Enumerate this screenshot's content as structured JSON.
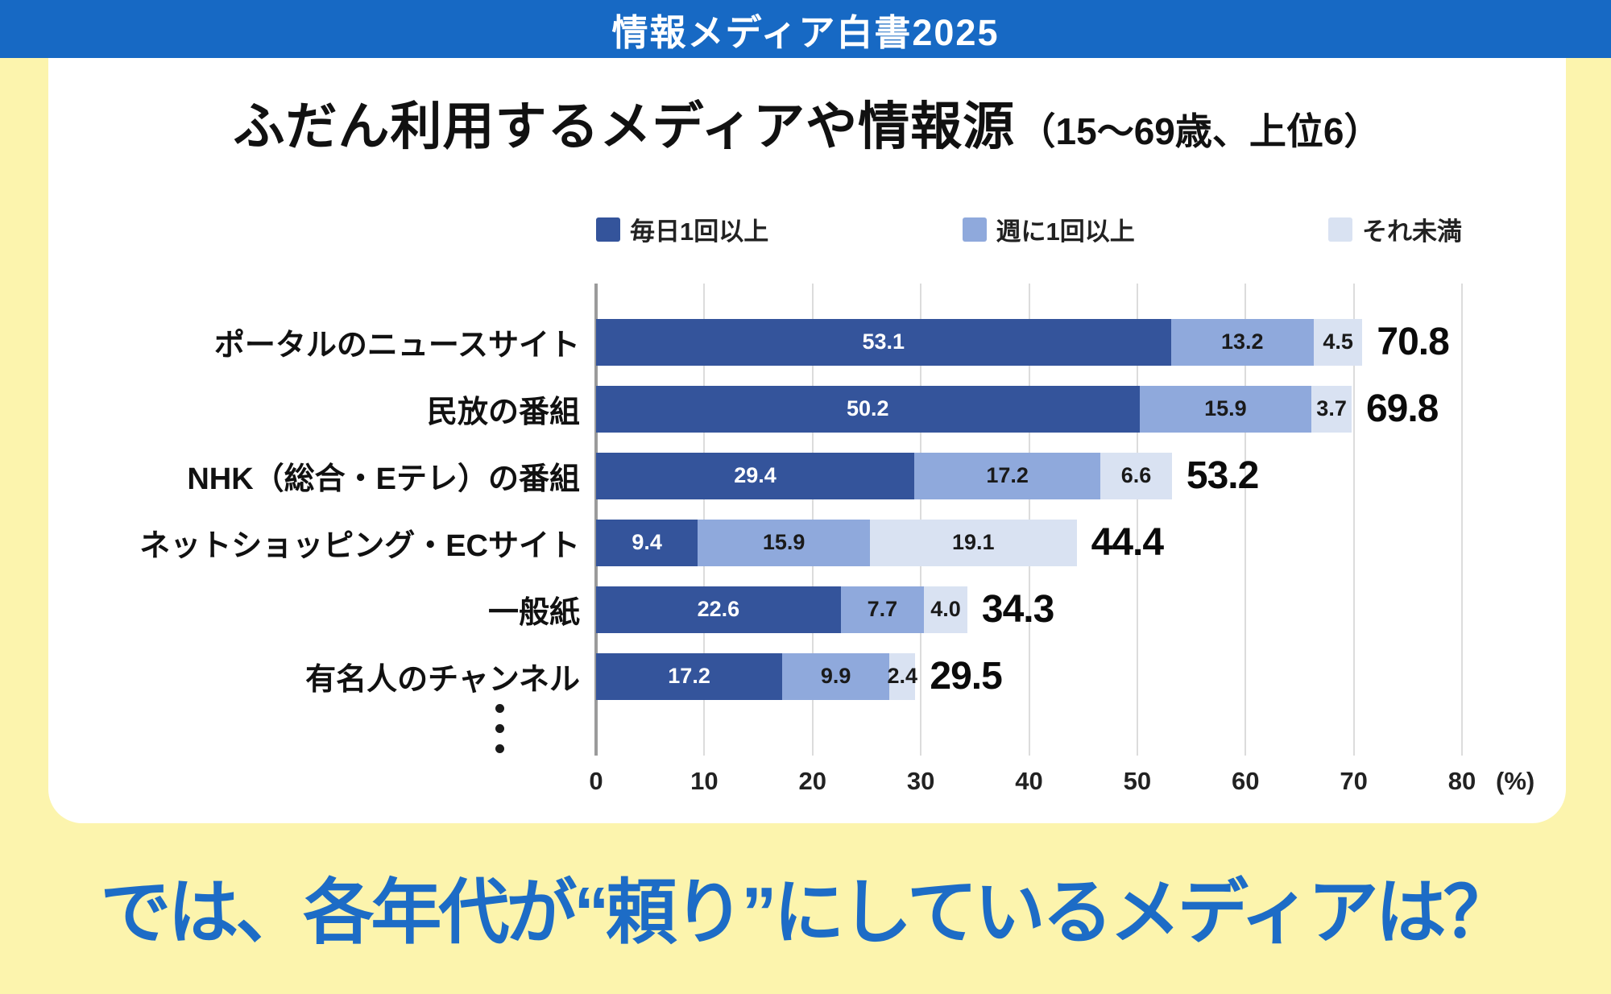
{
  "page": {
    "background": "#fcf4ad"
  },
  "banner": {
    "title": "情報メディア白書2025",
    "background": "#1769c4",
    "text_color": "#ffffff"
  },
  "card": {
    "title": "ふだん利用するメディアや情報源",
    "title_note": "（15〜69歳、上位6）"
  },
  "chart_data": {
    "type": "bar",
    "orientation": "horizontal_stacked",
    "title": "ふだん利用するメディアや情報源（15〜69歳、上位6）",
    "categories": [
      "ポータルのニュースサイト",
      "民放の番組",
      "NHK（総合・Eテレ）の番組",
      "ネットショッピング・ECサイト",
      "一般紙",
      "有名人のチャンネル"
    ],
    "series": [
      {
        "name": "毎日1回以上",
        "color": "#34549b",
        "label_color": "#ffffff",
        "values": [
          53.1,
          50.2,
          29.4,
          9.4,
          22.6,
          17.2
        ]
      },
      {
        "name": "週に1回以上",
        "color": "#8fa9dc",
        "label_color": "#1a1a1a",
        "values": [
          13.2,
          15.9,
          17.2,
          15.9,
          7.7,
          9.9
        ]
      },
      {
        "name": "それ未満",
        "color": "#d9e2f2",
        "label_color": "#1a1a1a",
        "values": [
          4.5,
          3.7,
          6.6,
          19.1,
          4.0,
          2.4
        ]
      }
    ],
    "totals": [
      70.8,
      69.8,
      53.2,
      44.4,
      34.3,
      29.5
    ],
    "x_ticks": [
      0,
      10,
      20,
      30,
      40,
      50,
      60,
      70,
      80
    ],
    "x_unit_label": "(%)",
    "xlim": [
      0,
      80
    ],
    "grid": true,
    "legend_position": "top",
    "truncation_indicator": "⋮"
  },
  "footer": {
    "question": "では、各年代が“頼り”にしているメディアは？",
    "text_color": "#1d6cc6"
  }
}
